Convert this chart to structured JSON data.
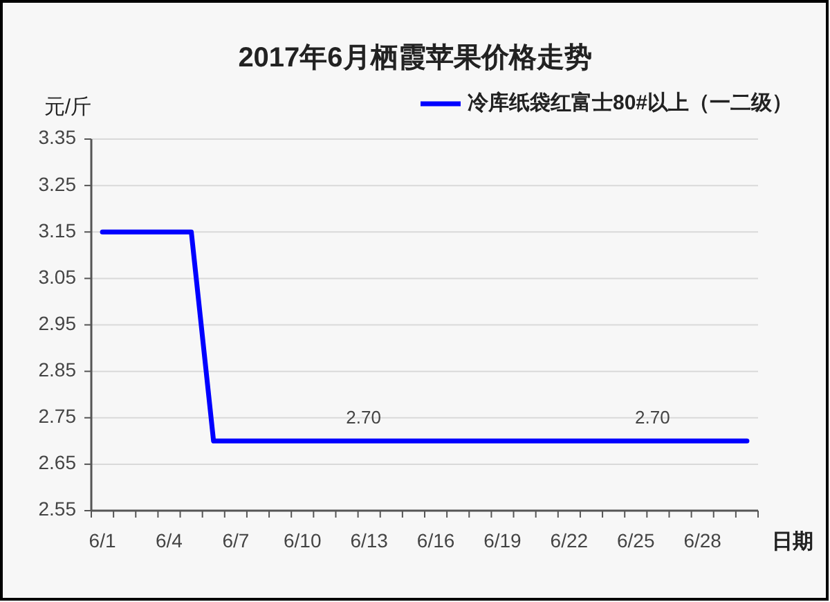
{
  "chart_data": {
    "type": "line",
    "title": "2017年6月栖霞苹果价格走势",
    "xlabel": "日期",
    "ylabel": "元/斤",
    "categories": [
      "6/1",
      null,
      null,
      "6/4",
      null,
      null,
      "6/7",
      null,
      null,
      "6/10",
      null,
      null,
      "6/13",
      null,
      null,
      "6/16",
      null,
      null,
      "6/19",
      null,
      null,
      "6/22",
      null,
      null,
      "6/25",
      null,
      null,
      "6/28",
      null,
      null
    ],
    "series": [
      {
        "name": "冷库纸袋红富士80#以上（一二级）",
        "color": "#0000ff",
        "values": [
          3.15,
          3.15,
          3.15,
          3.15,
          3.15,
          2.7,
          2.7,
          2.7,
          2.7,
          2.7,
          2.7,
          2.7,
          2.7,
          2.7,
          2.7,
          2.7,
          2.7,
          2.7,
          2.7,
          2.7,
          2.7,
          2.7,
          2.7,
          2.7,
          2.7,
          2.7,
          2.7,
          2.7,
          2.7,
          2.7
        ],
        "value_labels": [
          null,
          null,
          null,
          null,
          null,
          null,
          null,
          null,
          null,
          null,
          null,
          null,
          "2.70",
          null,
          null,
          null,
          null,
          null,
          null,
          null,
          null,
          null,
          null,
          null,
          null,
          "2.70",
          null,
          null,
          null,
          null
        ]
      }
    ],
    "ylim": [
      2.55,
      3.35
    ],
    "yticks": [
      2.55,
      2.65,
      2.75,
      2.85,
      2.95,
      3.05,
      3.15,
      3.25,
      3.35
    ],
    "grid": "y",
    "legend": "top right",
    "line_style": "solid"
  }
}
